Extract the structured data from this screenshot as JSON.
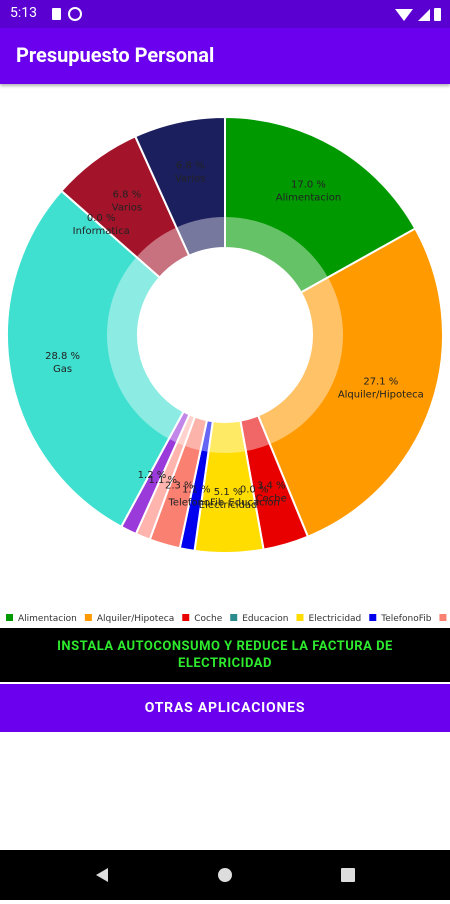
{
  "status_bar": {
    "time": "5:13"
  },
  "app_bar": {
    "title": "Presupuesto Personal"
  },
  "chart_data": {
    "type": "pie",
    "categories": [
      "Alimentacion",
      "Alquiler/Hipoteca",
      "Coche",
      "Educacion",
      "Electricidad",
      "TelefonoFib",
      null,
      null,
      null,
      "Gas",
      "Informatica",
      "Varios",
      "Varios"
    ],
    "values": [
      17.0,
      27.1,
      3.4,
      0.0,
      5.1,
      1.1,
      2.3,
      1.1,
      1.2,
      28.8,
      0.0,
      6.8,
      6.8
    ],
    "value_labels": [
      "17.0 %",
      "27.1 %",
      "3.4 %",
      "0.0 %",
      "5.1 %",
      "1.1 %",
      "2.3 %",
      "1.1 %",
      "1.2 %",
      "28.8 %",
      "0.0 %",
      "6.8 %",
      "6.8 %"
    ],
    "colors": [
      "#009a00",
      "#ff9a00",
      "#e80000",
      "#2a8c8c",
      "#ffdd00",
      "#0000ee",
      "#fa8072",
      "#ffb4ae",
      "#9a3ada",
      "#40e0d0",
      "#9aa0b0",
      "#a3142a",
      "#1b1f5e"
    ],
    "legend": "bottom-left"
  },
  "banner": {
    "text": "INSTALA AUTOCONSUMO Y REDUCE LA FACTURA DE ELECTRICIDAD"
  },
  "button": {
    "label": "OTRAS APLICACIONES"
  }
}
